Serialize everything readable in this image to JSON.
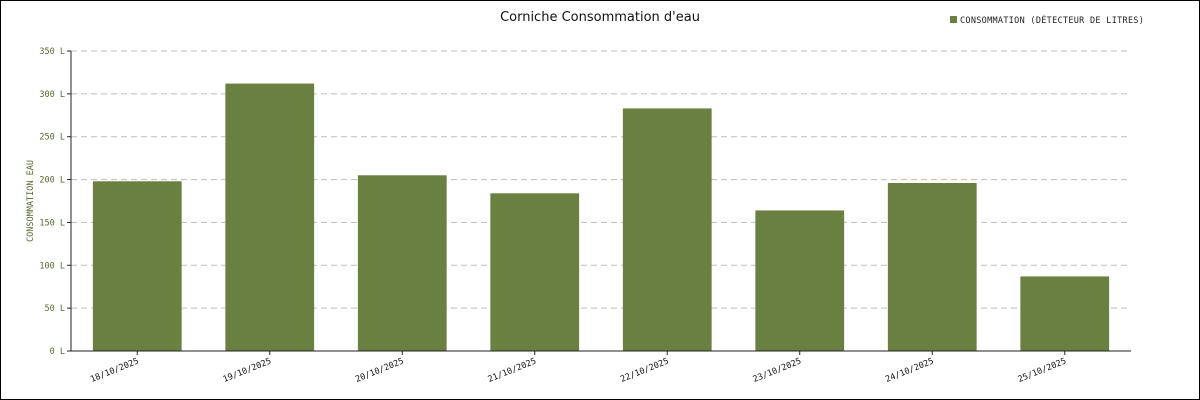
{
  "chart_data": {
    "type": "bar",
    "title": "Corniche Consommation d'eau",
    "ylabel": "CONSOMMATION EAU",
    "xlabel": "",
    "y_unit_suffix": " L",
    "ylim": [
      0,
      350
    ],
    "yticks": [
      0,
      50,
      100,
      150,
      200,
      250,
      300,
      350
    ],
    "ytick_labels": [
      "0 L",
      "50 L",
      "100 L",
      "150 L",
      "200 L",
      "250 L",
      "300 L",
      "350 L"
    ],
    "grid": true,
    "legend_position": "top-right",
    "categories": [
      "18/10/2025",
      "19/10/2025",
      "20/10/2025",
      "21/10/2025",
      "22/10/2025",
      "23/10/2025",
      "24/10/2025",
      "25/10/2025"
    ],
    "series": [
      {
        "name": "CONSOMMATION (DÉTECTEUR DE LITRES)",
        "color": "#6a8040",
        "values": [
          198,
          312,
          205,
          184,
          283,
          164,
          196,
          87
        ]
      }
    ],
    "axis_label_color": "#556b2f"
  }
}
